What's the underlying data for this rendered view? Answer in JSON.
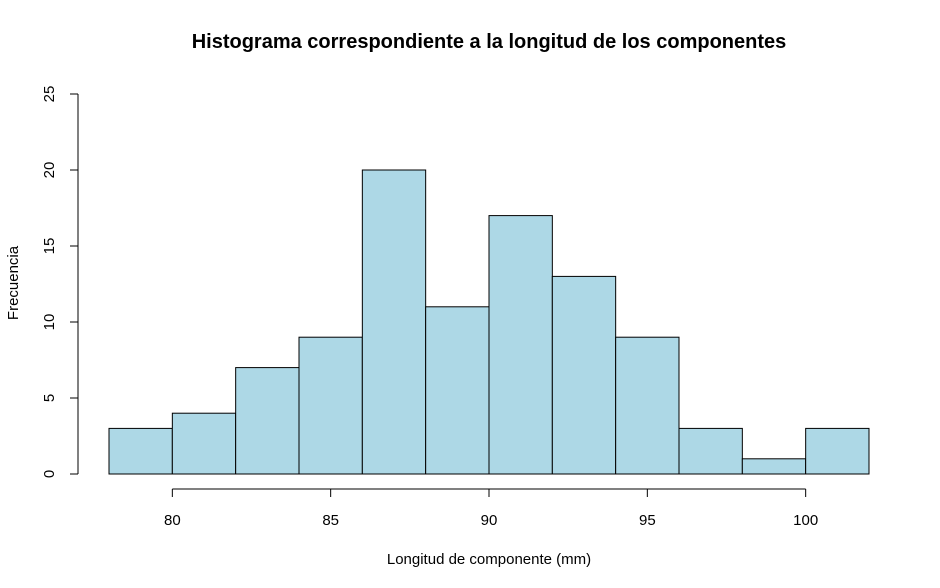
{
  "chart_data": {
    "type": "bar",
    "title": "Histograma correspondiente a la longitud de los componentes",
    "xlabel": "Longitud de componente (mm)",
    "ylabel": "Frecuencia",
    "bins": [
      {
        "from": 78,
        "to": 80,
        "count": 3
      },
      {
        "from": 80,
        "to": 82,
        "count": 4
      },
      {
        "from": 82,
        "to": 84,
        "count": 7
      },
      {
        "from": 84,
        "to": 86,
        "count": 9
      },
      {
        "from": 86,
        "to": 88,
        "count": 20
      },
      {
        "from": 88,
        "to": 90,
        "count": 11
      },
      {
        "from": 90,
        "to": 92,
        "count": 17
      },
      {
        "from": 92,
        "to": 94,
        "count": 13
      },
      {
        "from": 94,
        "to": 96,
        "count": 9
      },
      {
        "from": 96,
        "to": 98,
        "count": 3
      },
      {
        "from": 98,
        "to": 100,
        "count": 1
      },
      {
        "from": 100,
        "to": 102,
        "count": 3
      }
    ],
    "xticks": [
      "80",
      "85",
      "90",
      "95",
      "100"
    ],
    "yticks": [
      "0",
      "5",
      "10",
      "15",
      "20",
      "25"
    ],
    "xlim": [
      78,
      102
    ],
    "ylim": [
      0,
      25
    ],
    "bar_color": "#add8e6",
    "grid": false,
    "legend": "none"
  }
}
